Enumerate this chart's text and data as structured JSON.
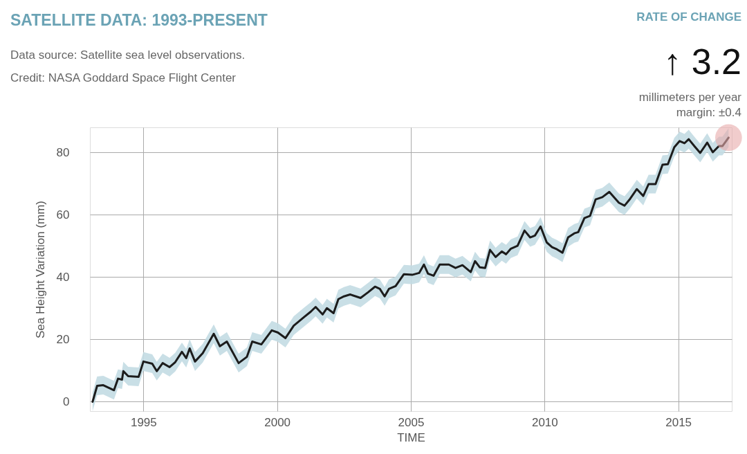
{
  "chart_data": {
    "type": "line",
    "title": "SATELLITE DATA: 1993-PRESENT",
    "subtitle": "Data source: Satellite sea level observations.\nCredit: NASA Goddard Space Flight Center",
    "xlabel": "TIME",
    "ylabel": "Sea Height Variation (mm)",
    "annotations": [
      "RATE OF CHANGE",
      "↑ 3.2",
      "millimeters per year",
      "margin: ±0.4"
    ],
    "xlim": [
      1993,
      2017
    ],
    "xticks": [
      1995,
      2000,
      2005,
      2010,
      2015
    ],
    "ylim": [
      -3,
      88
    ],
    "yticks": [
      0,
      20,
      40,
      60,
      80
    ],
    "grid": true,
    "series": [
      {
        "color": "#1c1c1c",
        "x": [
          1993.1,
          1993.27,
          1993.5,
          1993.9,
          1994.05,
          1994.2,
          1994.25,
          1994.43,
          1994.82,
          1995.0,
          1995.33,
          1995.5,
          1995.72,
          1995.98,
          1996.19,
          1996.44,
          1996.6,
          1996.73,
          1996.93,
          1997.22,
          1997.63,
          1997.86,
          1998.12,
          1998.56,
          1998.87,
          1999.07,
          1999.41,
          1999.8,
          2000.03,
          2000.31,
          2000.62,
          2001.0,
          2001.26,
          2001.44,
          2001.7,
          2001.86,
          2002.11,
          2002.29,
          2002.5,
          2002.73,
          2003.12,
          2003.4,
          2003.66,
          2003.84,
          2004.02,
          2004.18,
          2004.43,
          2004.74,
          2005.05,
          2005.31,
          2005.49,
          2005.64,
          2005.85,
          2006.08,
          2006.42,
          2006.67,
          2006.93,
          2007.24,
          2007.4,
          2007.58,
          2007.78,
          2007.96,
          2008.17,
          2008.4,
          2008.56,
          2008.74,
          2008.99,
          2009.25,
          2009.46,
          2009.64,
          2009.85,
          2010.08,
          2010.28,
          2010.46,
          2010.67,
          2010.88,
          2011.11,
          2011.26,
          2011.49,
          2011.7,
          2011.91,
          2012.16,
          2012.42,
          2012.78,
          2012.99,
          2013.2,
          2013.45,
          2013.69,
          2013.89,
          2014.15,
          2014.41,
          2014.61,
          2014.85,
          2015.05,
          2015.23,
          2015.39,
          2015.62,
          2015.82,
          2016.08,
          2016.29,
          2016.52,
          2016.65,
          2016.88
        ],
        "values": [
          0,
          5.1,
          5.3,
          3.7,
          7.4,
          7.1,
          9.8,
          8.2,
          8,
          12.9,
          12.2,
          9.8,
          12.4,
          11.1,
          12.7,
          16,
          14,
          17.1,
          12.9,
          15.6,
          21.8,
          17.8,
          19.3,
          12.4,
          14.4,
          19.3,
          18.4,
          22.9,
          22.2,
          20.4,
          24.4,
          27.1,
          28.9,
          30.4,
          28,
          30,
          28.4,
          32.9,
          33.8,
          34.4,
          33.3,
          35.1,
          36.9,
          36.2,
          33.8,
          36.2,
          37.1,
          40.9,
          40.7,
          41.3,
          44,
          41.1,
          40.4,
          44,
          44,
          42.9,
          43.8,
          41.6,
          45.1,
          43.1,
          42.9,
          48.7,
          46.4,
          48.2,
          47.3,
          49.1,
          50,
          54.9,
          52.7,
          53.3,
          56.2,
          51.1,
          49.6,
          48.9,
          47.8,
          52.7,
          54,
          54.4,
          58.9,
          59.6,
          64.9,
          65.6,
          67.3,
          63.8,
          62.9,
          65.1,
          68.2,
          66,
          69.8,
          69.8,
          76,
          76.2,
          81.6,
          83.6,
          82.9,
          84.2,
          81.8,
          79.8,
          83.1,
          80,
          82,
          82,
          84.7
        ],
        "lower": [
          -3,
          2.1,
          2.3,
          0.7,
          4.4,
          4.1,
          6.8,
          5.2,
          5,
          9.9,
          9.2,
          6.8,
          9.4,
          8.1,
          9.7,
          13,
          11,
          14.1,
          9.9,
          12.6,
          18.8,
          14.8,
          16.3,
          9.4,
          11.4,
          16.3,
          15.4,
          19.9,
          19.2,
          17.4,
          21.4,
          24.1,
          25.9,
          27.4,
          25,
          27,
          25.4,
          29.9,
          30.8,
          31.4,
          30.3,
          32.1,
          33.9,
          33.2,
          30.8,
          33.2,
          34.1,
          37.9,
          37.7,
          38.3,
          41,
          38.1,
          37.4,
          41,
          41,
          39.9,
          40.8,
          38.6,
          42.1,
          40.1,
          39.9,
          45.7,
          43.4,
          45.2,
          44.3,
          46.1,
          47,
          51.9,
          49.7,
          50.3,
          53.2,
          48.1,
          46.6,
          45.9,
          44.8,
          49.7,
          51,
          51.4,
          55.9,
          56.6,
          61.9,
          62.6,
          64.3,
          60.8,
          59.9,
          62.1,
          65.2,
          63,
          66.8,
          66.8,
          73,
          73.2,
          78.6,
          80.6,
          79.9,
          81.2,
          78.8,
          76.8,
          80.1,
          77,
          79,
          79,
          81.7
        ],
        "upper": [
          3,
          8.1,
          8.3,
          6.7,
          10.4,
          10.1,
          12.8,
          11.2,
          11,
          15.9,
          15.2,
          12.8,
          15.4,
          14.1,
          15.7,
          19,
          17,
          20.1,
          15.9,
          18.6,
          24.8,
          20.8,
          22.3,
          15.4,
          17.4,
          22.3,
          21.4,
          25.9,
          25.2,
          23.4,
          27.4,
          30.1,
          31.9,
          33.4,
          31,
          33,
          31.4,
          35.9,
          36.8,
          37.4,
          36.3,
          38.1,
          39.9,
          39.2,
          36.8,
          39.2,
          40.1,
          43.9,
          43.7,
          44.3,
          47,
          44.1,
          43.4,
          47,
          47,
          45.9,
          46.8,
          44.6,
          48.1,
          46.1,
          45.9,
          51.7,
          49.4,
          51.2,
          50.3,
          52.1,
          53,
          57.9,
          55.7,
          56.3,
          59.2,
          54.1,
          52.6,
          51.9,
          50.8,
          55.7,
          57,
          57.4,
          61.9,
          62.6,
          67.9,
          68.6,
          70.3,
          66.8,
          65.9,
          68.1,
          71.2,
          69,
          72.8,
          72.8,
          79,
          79.2,
          84.6,
          86.6,
          85.9,
          87.2,
          84.8,
          82.8,
          86.1,
          83,
          85,
          85,
          87.7
        ]
      },
      {
        "type": "scatter",
        "color": "#e8aaaa",
        "x": [
          2016.88
        ],
        "values": [
          84.7
        ]
      }
    ]
  }
}
